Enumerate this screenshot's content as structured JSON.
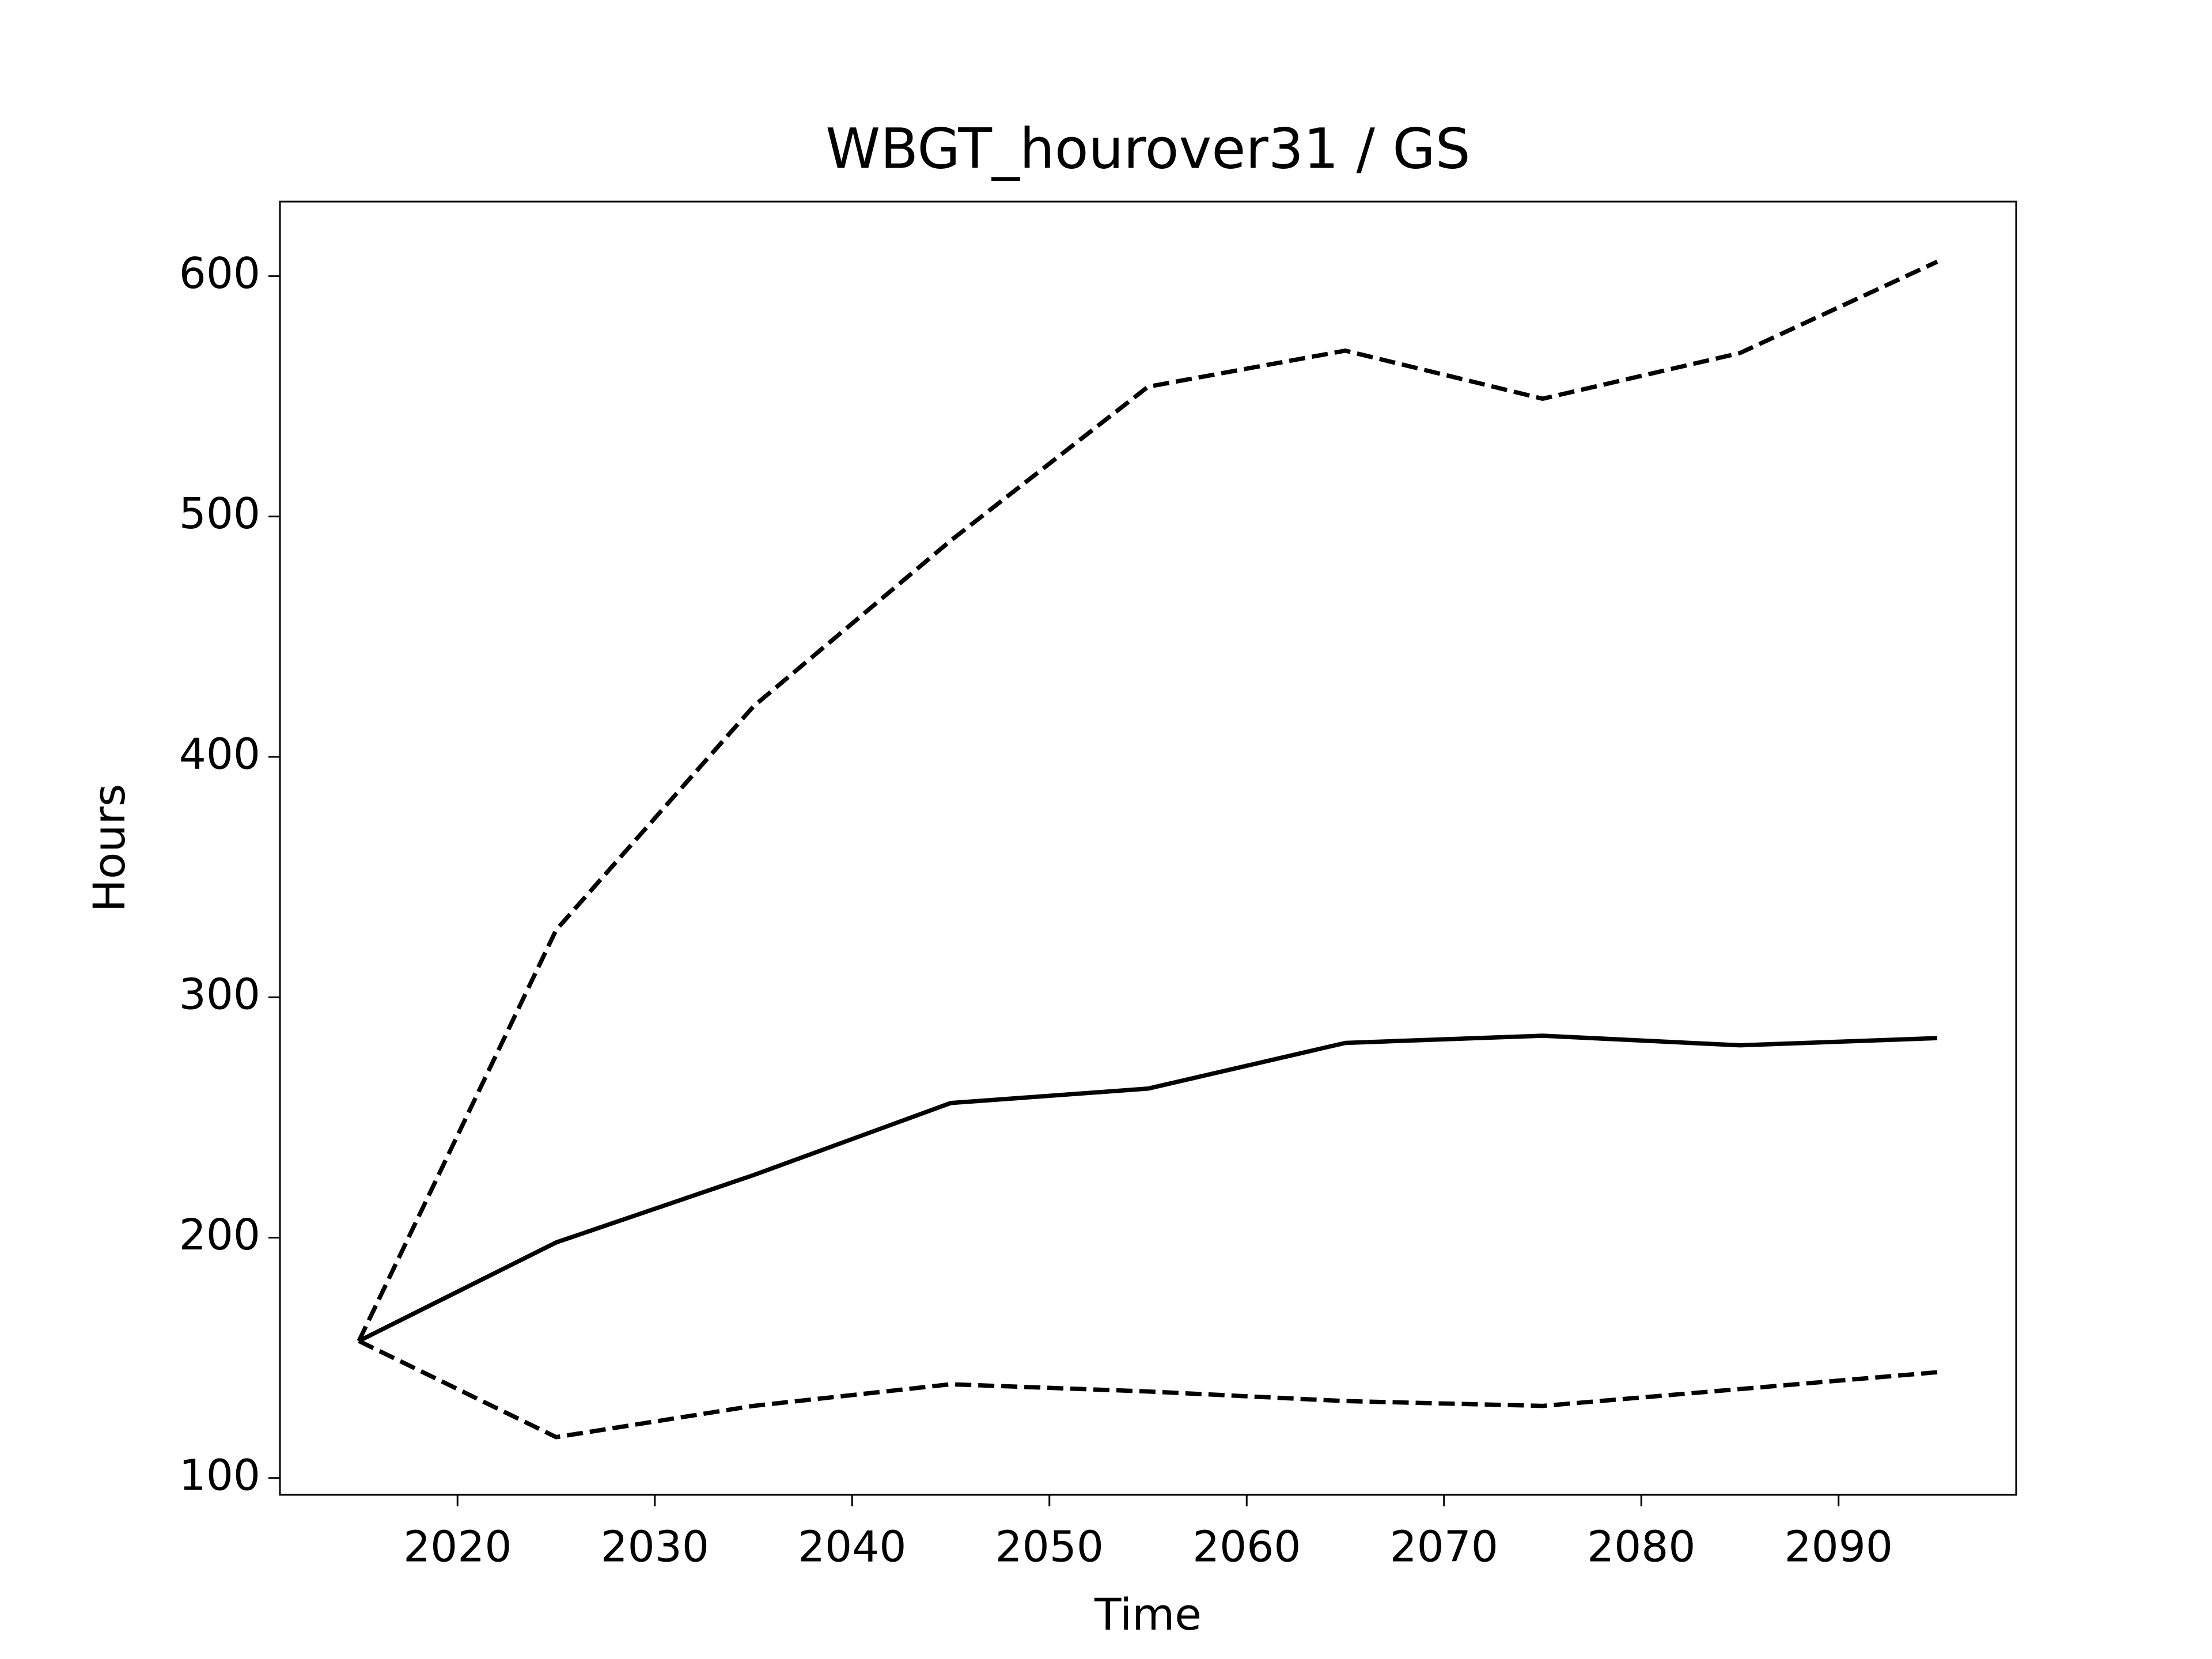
{
  "chart_data": {
    "type": "line",
    "title": "WBGT_hourover31 / GS",
    "x_label": "Time",
    "y_label": "Hours",
    "x": [
      2015,
      2025,
      2035,
      2045,
      2055,
      2065,
      2075,
      2085,
      2095
    ],
    "series": [
      {
        "color": "#000000",
        "linestyle": "solid",
        "values": [
          157,
          198,
          226,
          256,
          262,
          281,
          284,
          280,
          283
        ]
      },
      {
        "color": "#000000",
        "linestyle": "dashed",
        "values": [
          157,
          328,
          421,
          490,
          554,
          569,
          549,
          568,
          606
        ]
      },
      {
        "color": "#000000",
        "linestyle": "dashed",
        "values": [
          157,
          117,
          130,
          139,
          136,
          132,
          130,
          137,
          144
        ]
      }
    ],
    "xlim": [
      2011,
      2099
    ],
    "xticks": [
      2020,
      2030,
      2040,
      2050,
      2060,
      2070,
      2080,
      2090
    ],
    "ylim": [
      93,
      631
    ],
    "yticks": [
      100,
      200,
      300,
      400,
      500,
      600
    ],
    "grid": false
  }
}
